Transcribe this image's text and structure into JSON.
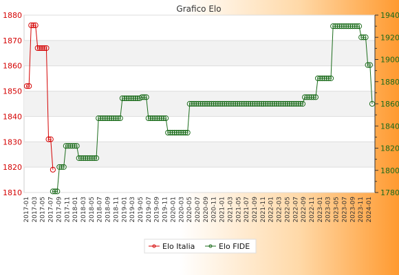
{
  "chart_data": {
    "type": "line",
    "title": "Grafico Elo",
    "x_tick_labels": [
      "2017-01",
      "2017-03",
      "2017-05",
      "2017-07",
      "2017-09",
      "2017-11",
      "2018-01",
      "2018-03",
      "2018-05",
      "2018-07",
      "2018-09",
      "2018-11",
      "2019-01",
      "2019-03",
      "2019-05",
      "2019-07",
      "2019-09",
      "2019-11",
      "2020-01",
      "2020-03",
      "2020-05",
      "2020-07",
      "2020-09",
      "2020-11",
      "2021-01",
      "2021-03",
      "2021-05",
      "2021-07",
      "2021-09",
      "2021-11",
      "2022-01",
      "2022-03",
      "2022-05",
      "2022-07",
      "2022-09",
      "2022-11",
      "2023-01",
      "2023-03",
      "2023-05",
      "2023-07",
      "2023-09",
      "2023-11",
      "2024-01"
    ],
    "y_left": {
      "ylim": [
        1810,
        1880
      ],
      "ticks": [
        "1880",
        "1870",
        "1860",
        "1850",
        "1840",
        "1830",
        "1820",
        "1810"
      ],
      "color": "#d40000"
    },
    "y_right": {
      "ylim": [
        1780,
        1940
      ],
      "ticks": [
        "1940",
        "1920",
        "1900",
        "1880",
        "1860",
        "1840",
        "1820",
        "1800",
        "1780"
      ],
      "color": "#1a6b1a"
    },
    "grid": true,
    "legend_position": "bottom-center",
    "series": [
      {
        "name": "Elo Italia",
        "axis": "left",
        "color": "#d40000",
        "x": [
          0,
          1,
          2,
          3,
          4,
          5,
          6,
          7,
          8,
          9,
          10,
          11,
          12
        ],
        "values": [
          1852,
          1852,
          1876,
          1876,
          1876,
          1867,
          1867,
          1867,
          1867,
          1867,
          1831,
          1831,
          1819
        ]
      },
      {
        "name": "Elo FIDE",
        "axis": "right",
        "color": "#1a6b1a",
        "segments": [
          {
            "from": 12,
            "to": 14,
            "value": 1781
          },
          {
            "from": 15,
            "to": 17,
            "value": 1803
          },
          {
            "from": 18,
            "to": 23,
            "value": 1822
          },
          {
            "from": 24,
            "to": 32,
            "value": 1811
          },
          {
            "from": 33,
            "to": 43,
            "value": 1847
          },
          {
            "from": 44,
            "to": 52,
            "value": 1865
          },
          {
            "from": 53,
            "to": 55,
            "value": 1866
          },
          {
            "from": 56,
            "to": 64,
            "value": 1847
          },
          {
            "from": 65,
            "to": 74,
            "value": 1834
          },
          {
            "from": 75,
            "to": 127,
            "value": 1860
          },
          {
            "from": 128,
            "to": 133,
            "value": 1866
          },
          {
            "from": 134,
            "to": 140,
            "value": 1883
          },
          {
            "from": 141,
            "to": 153,
            "value": 1930
          },
          {
            "from": 154,
            "to": 156,
            "value": 1920
          },
          {
            "from": 157,
            "to": 158,
            "value": 1895
          },
          {
            "from": 159,
            "to": 159,
            "value": 1860
          }
        ]
      }
    ]
  }
}
